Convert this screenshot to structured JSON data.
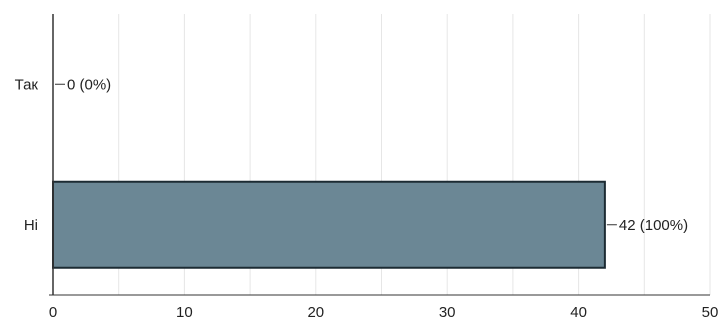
{
  "chart_data": {
    "type": "bar",
    "orientation": "horizontal",
    "categories": [
      "Так",
      "Ні"
    ],
    "values": [
      0,
      42
    ],
    "data_labels": [
      "0 (0%)",
      "42 (100%)"
    ],
    "xlim": [
      0,
      50
    ],
    "xticks": [
      0,
      10,
      20,
      30,
      40,
      50
    ],
    "grid": true,
    "legend": "none",
    "bar_color": "#6b8795",
    "bar_edge_color": "#1c2b33",
    "grid_color": "#e6e6e6",
    "axis_color": "#333333"
  }
}
